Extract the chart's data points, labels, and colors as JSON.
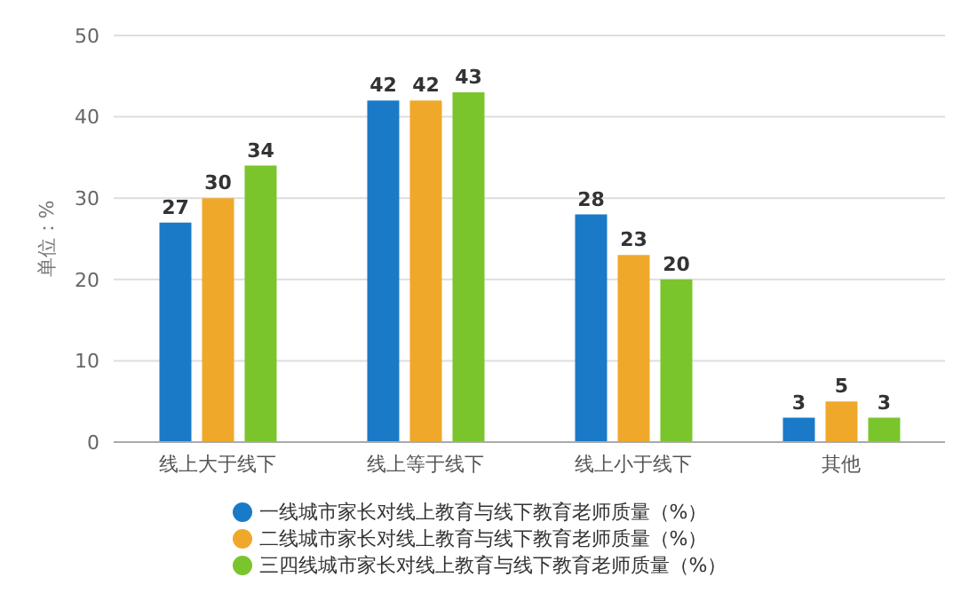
{
  "chart_data": {
    "type": "bar",
    "ylabel": "单位：%",
    "categories": [
      "线上大于线下",
      "线上等于线下",
      "线上小于线下",
      "其他"
    ],
    "series": [
      {
        "name": "一线城市家长对线上教育与线下教育老师质量（%）",
        "color": "#1a7ac7",
        "values": [
          27,
          42,
          28,
          3
        ]
      },
      {
        "name": "二线城市家长对线上教育与线下教育老师质量（%）",
        "color": "#f0a82a",
        "values": [
          30,
          42,
          23,
          5
        ]
      },
      {
        "name": "三四线城市家长对线上教育与线下教育老师质量（%）",
        "color": "#7ac52b",
        "values": [
          34,
          43,
          20,
          3
        ]
      }
    ],
    "ylim": [
      0,
      50
    ],
    "yticks": [
      0,
      10,
      20,
      30,
      40,
      50
    ],
    "grid": "y",
    "legend": "bottom",
    "data_labels": true
  }
}
